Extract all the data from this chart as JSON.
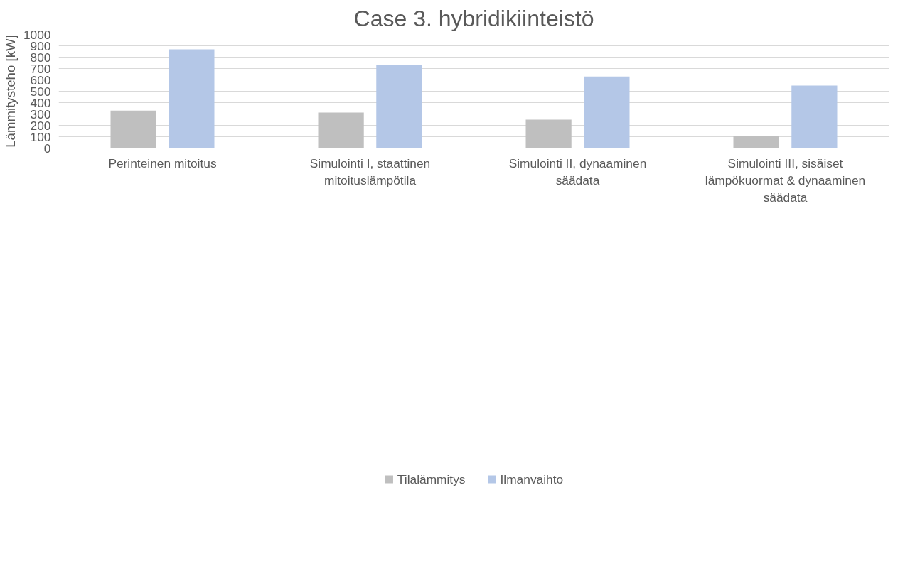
{
  "chart_data": {
    "type": "bar",
    "title": "Case 3. hybridikiinteistö",
    "ylabel": "Lämmitysteho [kW]",
    "categories": [
      "Perinteinen mitoitus",
      "Simulointi I, staattinen mitoituslämpötila",
      "Simulointi II, dynaaminen säädata",
      "Simulointi III, sisäiset lämpökuormat & dynaaminen säädata"
    ],
    "series": [
      {
        "name": "Tilalämmitys",
        "color": "#bfbfbf",
        "values": [
          330,
          313,
          250,
          110
        ]
      },
      {
        "name": "Ilmanvaihto",
        "color": "#b4c7e7",
        "values": [
          868,
          732,
          629,
          550
        ]
      }
    ],
    "ylim": [
      0,
      1000
    ],
    "yticks": [
      0,
      100,
      200,
      300,
      400,
      500,
      600,
      700,
      800,
      900,
      1000
    ],
    "grid": "y",
    "legend": "bottom"
  }
}
